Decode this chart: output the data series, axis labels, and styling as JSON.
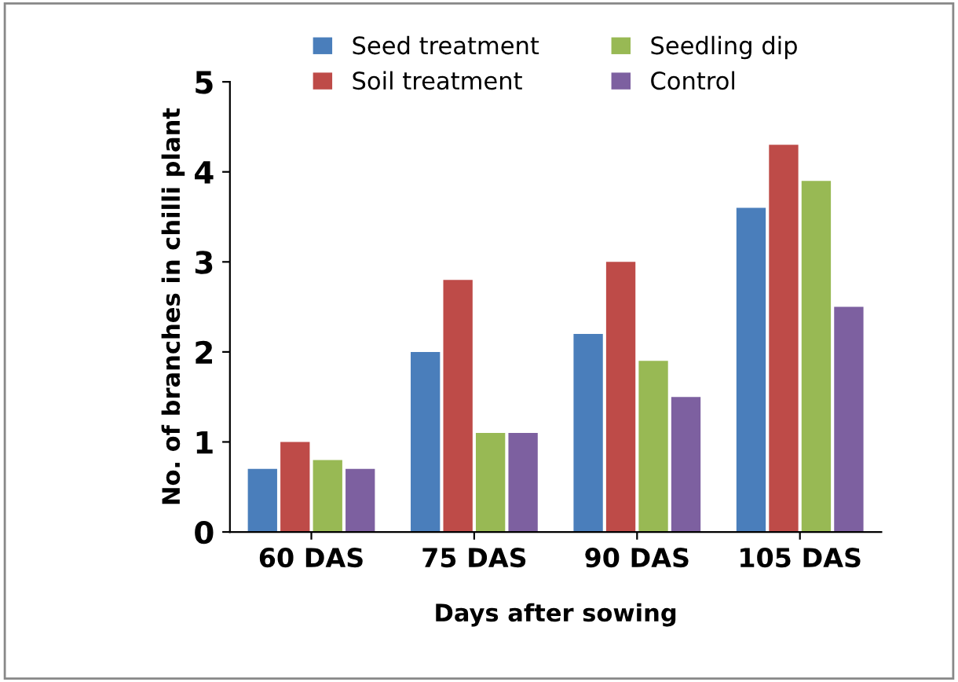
{
  "chart_data": {
    "type": "bar",
    "xlabel": "Days after sowing",
    "ylabel": "No. of branches in chilli plant",
    "categories": [
      "60 DAS",
      "75 DAS",
      "90 DAS",
      "105 DAS"
    ],
    "series": [
      {
        "name": "Seed treatment",
        "color": "#4a7ebb",
        "values": [
          0.7,
          2.0,
          2.2,
          3.6
        ]
      },
      {
        "name": "Soil treatment",
        "color": "#be4b48",
        "values": [
          1.0,
          2.8,
          3.0,
          4.3
        ]
      },
      {
        "name": "Seedling dip",
        "color": "#98b954",
        "values": [
          0.8,
          1.1,
          1.9,
          3.9
        ]
      },
      {
        "name": "Control",
        "color": "#7d60a0",
        "values": [
          0.7,
          1.1,
          1.5,
          2.5
        ]
      }
    ],
    "ylim": [
      0,
      5
    ],
    "yticks": [
      0,
      1,
      2,
      3,
      4,
      5
    ],
    "grid": false,
    "legend": "top"
  }
}
